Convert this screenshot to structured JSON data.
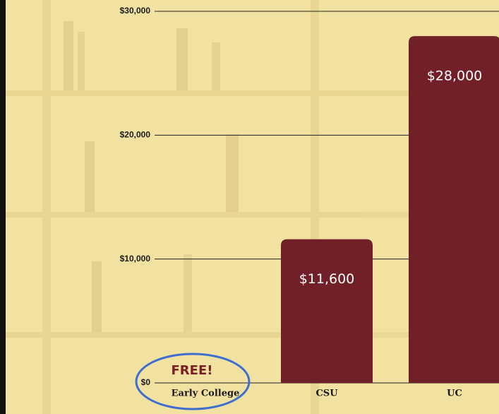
{
  "chart_data": {
    "type": "bar",
    "categories": [
      "Early College",
      "CSU",
      "UC"
    ],
    "values": [
      0,
      11600,
      28000
    ],
    "value_labels": [
      "FREE!",
      "$11,600",
      "$28,000"
    ],
    "color": "#722028",
    "ylim": [
      0,
      30000
    ],
    "yticks": [
      {
        "value": 0,
        "label": "$0"
      },
      {
        "value": 10000,
        "label": "$10,000"
      },
      {
        "value": 20000,
        "label": "$20,000"
      },
      {
        "value": 30000,
        "label": "$30,000"
      }
    ],
    "grid": true
  }
}
